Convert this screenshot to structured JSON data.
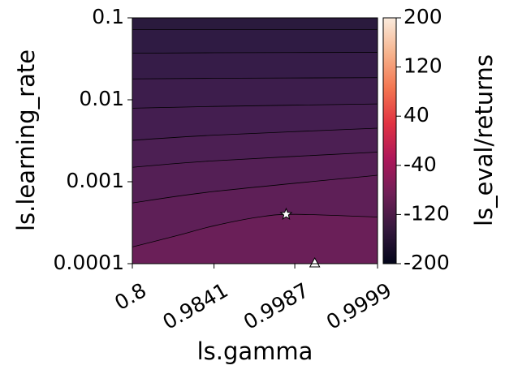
{
  "chart_data": {
    "type": "contour",
    "x_label": "ls.gamma",
    "y_label": "ls.learning_rate",
    "colorbar_label": "ls_eval/returns",
    "xscale": "log_one_minus",
    "yscale": "log",
    "xlim": [
      0.8,
      0.9999
    ],
    "xticks": [
      0.8,
      0.9841,
      0.9987,
      0.9999
    ],
    "ylim": [
      0.0001,
      0.1
    ],
    "yticks": [
      0.0001,
      0.001,
      0.01,
      0.1
    ],
    "clim": [
      -200,
      200
    ],
    "cticks": [
      -200,
      -120,
      -40,
      40,
      120,
      200
    ],
    "colormap": [
      "#03051a",
      "#36193e",
      "#701f57",
      "#ae1759",
      "#e13342",
      "#f37651",
      "#f6b48e",
      "#faebdd"
    ],
    "fill_colors": [
      "#2a1a3d",
      "#2f1b43",
      "#361c48",
      "#3d1d4c",
      "#441e50",
      "#4c1f53",
      "#541f55",
      "#5e1f57",
      "#6a1f58"
    ],
    "contours": [
      {
        "x": [
          0.8,
          0.9841,
          0.9999
        ],
        "y": [
          0.072,
          0.072,
          0.072
        ]
      },
      {
        "x": [
          0.8,
          0.9841,
          0.9999
        ],
        "y": [
          0.037,
          0.0375,
          0.038
        ]
      },
      {
        "x": [
          0.8,
          0.9841,
          0.9999
        ],
        "y": [
          0.018,
          0.0183,
          0.0186
        ]
      },
      {
        "x": [
          0.8,
          0.9841,
          0.9999
        ],
        "y": [
          0.0079,
          0.0083,
          0.0089
        ]
      },
      {
        "x": [
          0.8,
          0.9841,
          0.9999
        ],
        "y": [
          0.0032,
          0.0037,
          0.0045
        ]
      },
      {
        "x": [
          0.8,
          0.9841,
          0.9999
        ],
        "y": [
          0.0015,
          0.0018,
          0.0023
        ]
      },
      {
        "x": [
          0.8,
          0.9841,
          0.9999
        ],
        "y": [
          0.00055,
          0.00076,
          0.0012
        ]
      },
      {
        "x": [
          0.8,
          0.95,
          0.9841,
          0.996,
          0.9987,
          0.9999
        ],
        "y": [
          0.00016,
          0.00022,
          0.00029,
          0.00037,
          0.0004,
          0.00037
        ]
      }
    ],
    "markers": [
      {
        "x": 0.9983,
        "y": 0.0004,
        "shape": "star",
        "color": "#ffffff"
      },
      {
        "x": 0.9993,
        "y": 0.0001,
        "shape": "triangle",
        "color": "#ffffff"
      }
    ]
  }
}
